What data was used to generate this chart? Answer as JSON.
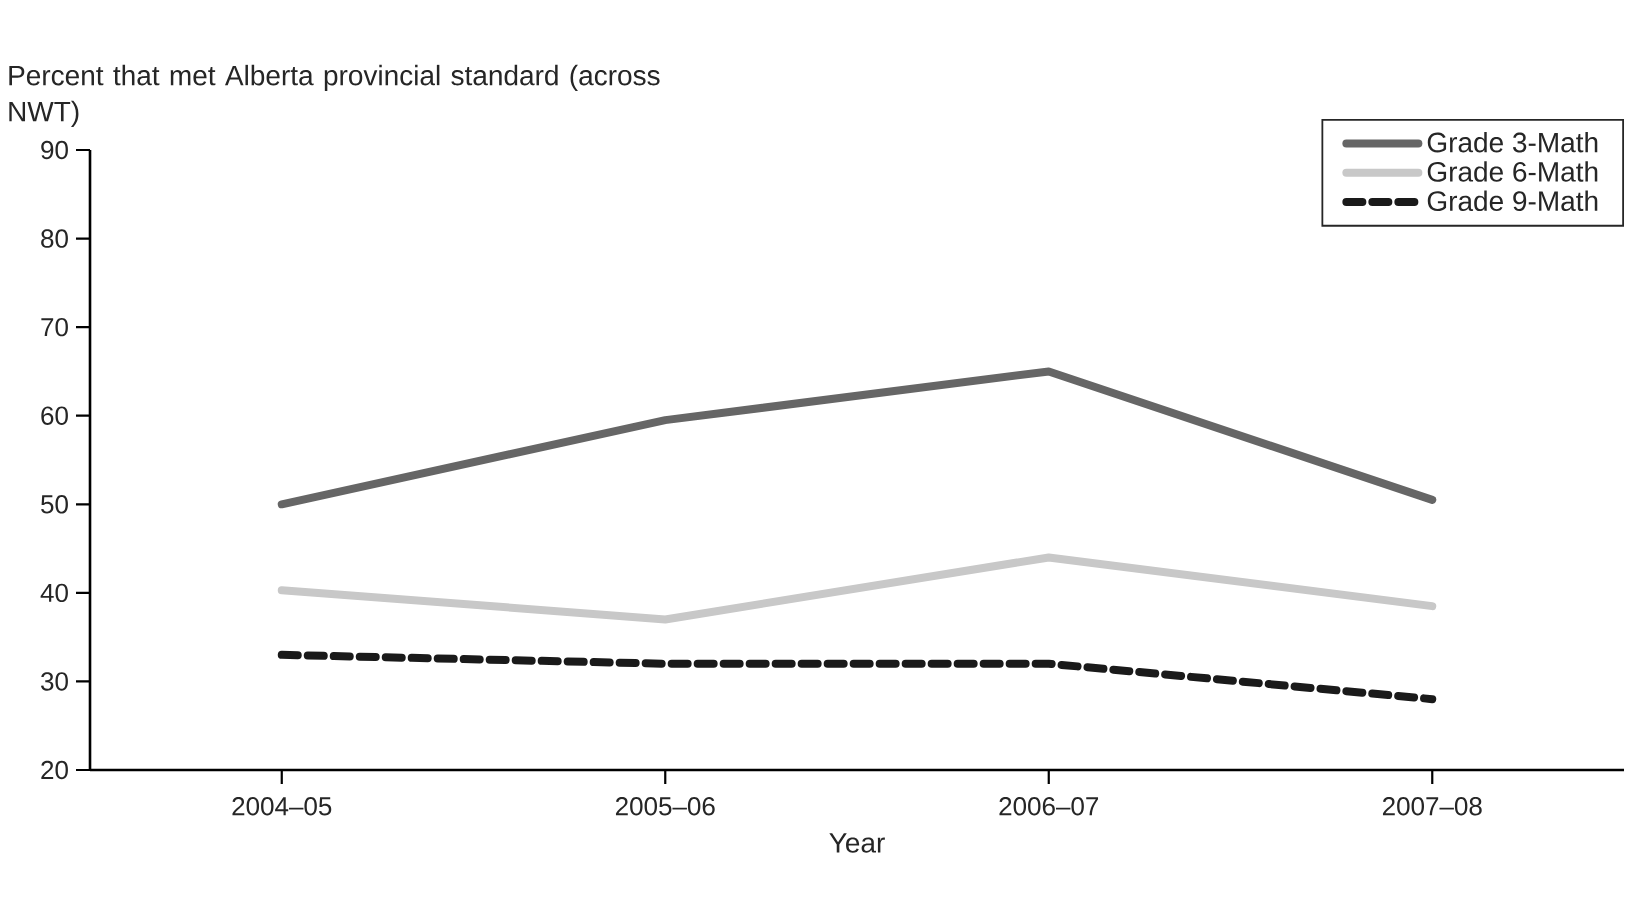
{
  "chart_data": {
    "type": "line",
    "ylabel": "Percent that met Alberta provincial standard (across NWT)",
    "xlabel": "Year",
    "categories": [
      "2004–05",
      "2005–06",
      "2006–07",
      "2007–08"
    ],
    "series": [
      {
        "name": "Grade 3-Math",
        "color": "#666666",
        "line_style": "solid",
        "values": [
          50,
          59.5,
          65,
          50.5
        ]
      },
      {
        "name": "Grade 6-Math",
        "color": "#c8c8c8",
        "line_style": "solid",
        "values": [
          40.3,
          37,
          44,
          38.5
        ]
      },
      {
        "name": "Grade 9-Math",
        "color": "#1a1a1a",
        "line_style": "dashed",
        "values": [
          33,
          32,
          32,
          28
        ]
      }
    ],
    "ylim": [
      20,
      90
    ],
    "yticks": [
      20,
      30,
      40,
      50,
      60,
      70,
      80,
      90
    ],
    "legend": "top right",
    "marker": "none",
    "grid": false
  }
}
